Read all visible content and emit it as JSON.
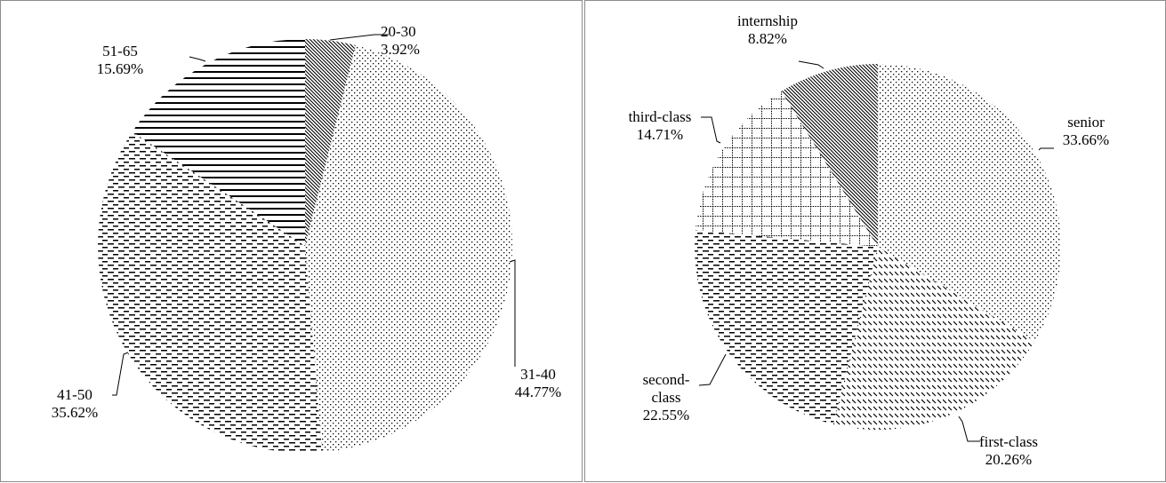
{
  "chart_data": [
    {
      "type": "pie",
      "title": "",
      "slices": [
        {
          "label": "20-30",
          "value": 3.92,
          "value_label": "3.92%",
          "pattern": "diagonal-dense"
        },
        {
          "label": "31-40",
          "value": 44.77,
          "value_label": "44.77%",
          "pattern": "dots"
        },
        {
          "label": "41-50",
          "value": 35.62,
          "value_label": "35.62%",
          "pattern": "short-dashes"
        },
        {
          "label": "51-65",
          "value": 15.69,
          "value_label": "15.69%",
          "pattern": "horizontal-lines"
        }
      ],
      "legend": "none (leader-line labels)"
    },
    {
      "type": "pie",
      "title": "",
      "slices": [
        {
          "label": "senior",
          "value": 33.66,
          "value_label": "33.66%",
          "pattern": "dots"
        },
        {
          "label": "first-class",
          "value": 20.26,
          "value_label": "20.26%",
          "pattern": "diagonal-dashes"
        },
        {
          "label": "second-\nclass",
          "value": 22.55,
          "value_label": "22.55%",
          "pattern": "short-dashes"
        },
        {
          "label": "third-class",
          "value": 14.71,
          "value_label": "14.71%",
          "pattern": "grid"
        },
        {
          "label": "internship",
          "value": 8.82,
          "value_label": "8.82%",
          "pattern": "diagonal-dense"
        }
      ],
      "legend": "none (leader-line labels)"
    }
  ]
}
